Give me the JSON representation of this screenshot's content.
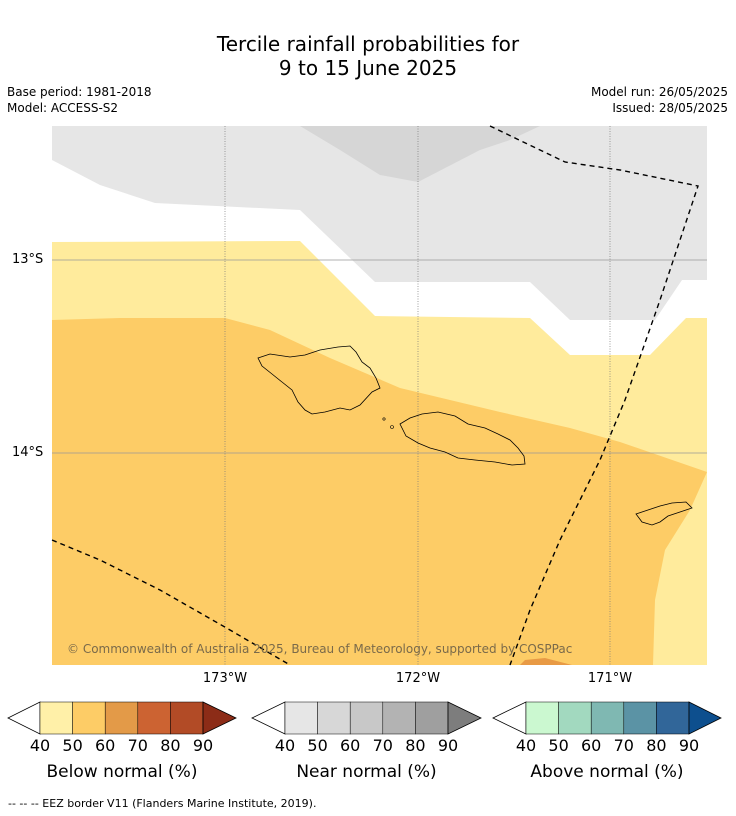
{
  "title": {
    "line1": "Tercile rainfall probabilities for",
    "line2": "9 to 15 June 2025"
  },
  "meta": {
    "base_period": "Base period: 1981-2018",
    "model": "Model: ACCESS-S2",
    "model_run": "Model run: 26/05/2025",
    "issued": "Issued: 28/05/2025"
  },
  "map": {
    "lat_labels": [
      "13°S",
      "14°S"
    ],
    "lon_labels": [
      "173°W",
      "172°W",
      "171°W"
    ],
    "copyright": "© Commonwealth of Australia 2025, Bureau of Meteorology, supported by COSPPac",
    "colors": {
      "below_40_50": "#ffeb9c",
      "below_50_60": "#fdcc66",
      "below_60_70": "#e89a45",
      "near_40_50": "#e6e6e6",
      "near_50_60": "#d6d6d6",
      "no_data": "#ffffff"
    }
  },
  "colorbars": [
    {
      "label": "Below normal (%)",
      "ticks": [
        "40",
        "50",
        "60",
        "70",
        "80",
        "90"
      ],
      "colors": [
        "#fff0a8",
        "#fdcc66",
        "#e39a48",
        "#cc6332",
        "#b24b26",
        "#8c2c17"
      ]
    },
    {
      "label": "Near normal (%)",
      "ticks": [
        "40",
        "50",
        "60",
        "70",
        "80",
        "90"
      ],
      "colors": [
        "#e6e6e6",
        "#d7d7d7",
        "#c8c8c8",
        "#b3b3b3",
        "#9f9f9f",
        "#7d7d7d"
      ]
    },
    {
      "label": "Above normal (%)",
      "ticks": [
        "40",
        "50",
        "60",
        "70",
        "80",
        "90"
      ],
      "colors": [
        "#cbf8d0",
        "#a2d9bf",
        "#7fb8b2",
        "#5b93a5",
        "#316699",
        "#0d4f8e"
      ]
    }
  ],
  "footnote": "--  --  -- EEZ border V11 (Flanders Marine Institute, 2019)."
}
